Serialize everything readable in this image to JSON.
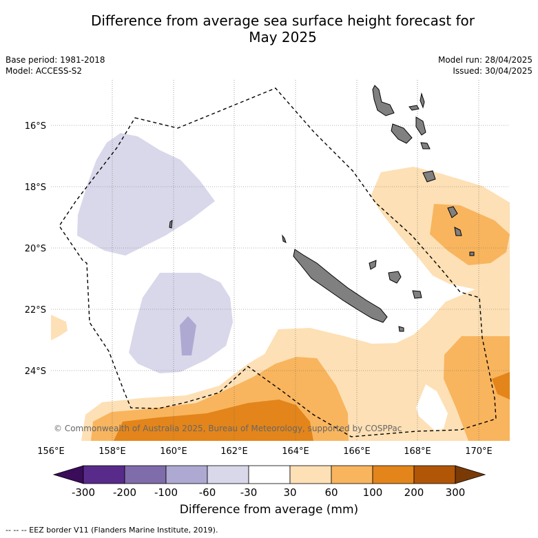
{
  "title_line1": "Difference from average sea surface height forecast for",
  "title_line2": "May 2025",
  "base_period": "Base period: 1981-2018",
  "model": "Model: ACCESS-S2",
  "model_run": "Model run: 28/04/2025",
  "issued": "Issued: 30/04/2025",
  "copyright": "© Commonwealth of Australia 2025, Bureau of Meteorology, supported by COSPPac",
  "lat_labels": [
    "16°S",
    "18°S",
    "20°S",
    "22°S",
    "24°S"
  ],
  "lon_labels": [
    "156°E",
    "158°E",
    "160°E",
    "162°E",
    "164°E",
    "166°E",
    "168°E",
    "170°E"
  ],
  "colorbar": {
    "ticks": [
      "-300",
      "-200",
      "-100",
      "-60",
      "-30",
      "30",
      "60",
      "100",
      "200",
      "300"
    ],
    "colors": [
      "#582b8b",
      "#7f6cab",
      "#aea9d2",
      "#d8d8ea",
      "#ffffff",
      "#fde0b5",
      "#f8b55e",
      "#e3851a",
      "#b15607"
    ],
    "extend_low_color": "#3a0c5a",
    "extend_high_color": "#7a3a06",
    "label": "Difference from average (mm)"
  },
  "footer": "-- -- -- EEZ border V11 (Flanders Marine Institute, 2019)."
}
